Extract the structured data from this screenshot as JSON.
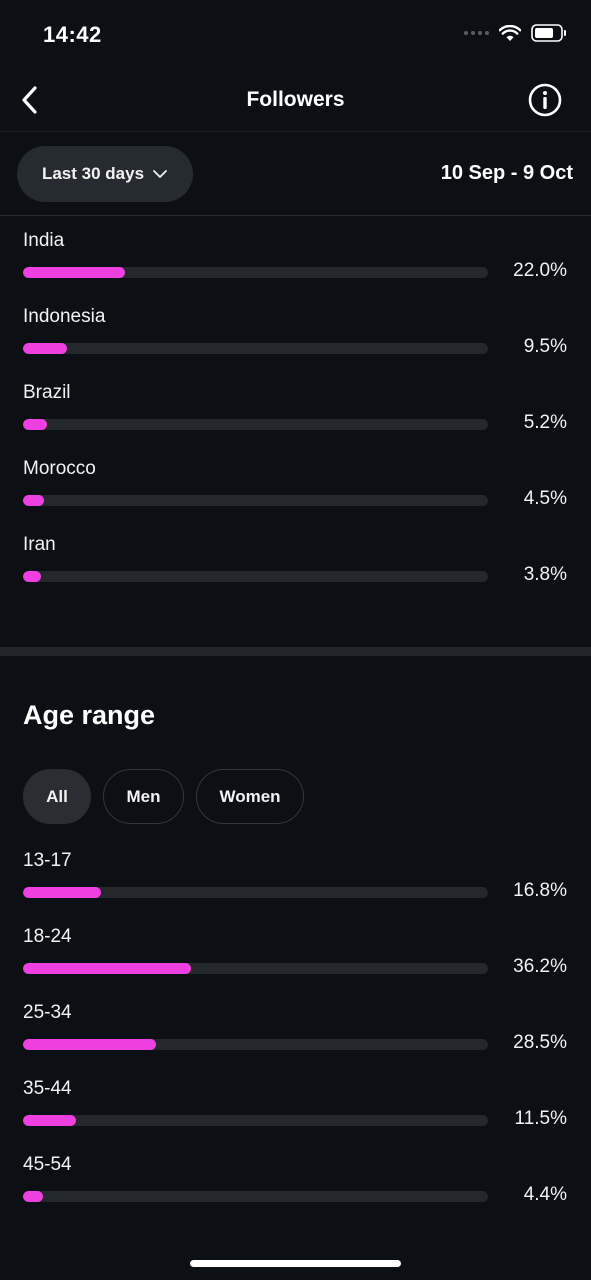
{
  "status_bar": {
    "time": "14:42"
  },
  "header": {
    "title": "Followers"
  },
  "filter": {
    "period_label": "Last 30 days",
    "date_range": "10 Sep - 9 Oct"
  },
  "countries": [
    {
      "label": "India",
      "value": "22.0%",
      "fraction": 0.22
    },
    {
      "label": "Indonesia",
      "value": "9.5%",
      "fraction": 0.095
    },
    {
      "label": "Brazil",
      "value": "5.2%",
      "fraction": 0.052
    },
    {
      "label": "Morocco",
      "value": "4.5%",
      "fraction": 0.045
    },
    {
      "label": "Iran",
      "value": "3.8%",
      "fraction": 0.038
    }
  ],
  "age_section": {
    "title": "Age range",
    "tabs": [
      {
        "label": "All",
        "active": true
      },
      {
        "label": "Men",
        "active": false
      },
      {
        "label": "Women",
        "active": false
      }
    ],
    "ranges": [
      {
        "label": "13-17",
        "value": "16.8%",
        "fraction": 0.168
      },
      {
        "label": "18-24",
        "value": "36.2%",
        "fraction": 0.362
      },
      {
        "label": "25-34",
        "value": "28.5%",
        "fraction": 0.285
      },
      {
        "label": "35-44",
        "value": "11.5%",
        "fraction": 0.115
      },
      {
        "label": "45-54",
        "value": "4.4%",
        "fraction": 0.044
      }
    ]
  },
  "colors": {
    "background": "#0c0f14",
    "bar_fill": "#ee40e0",
    "bar_track": "#25272d",
    "pill": "#262a31"
  },
  "icons": {
    "back": "chevron-left-icon",
    "info": "info-icon",
    "dropdown": "chevron-down-icon",
    "wifi": "wifi-icon",
    "battery": "battery-icon"
  }
}
